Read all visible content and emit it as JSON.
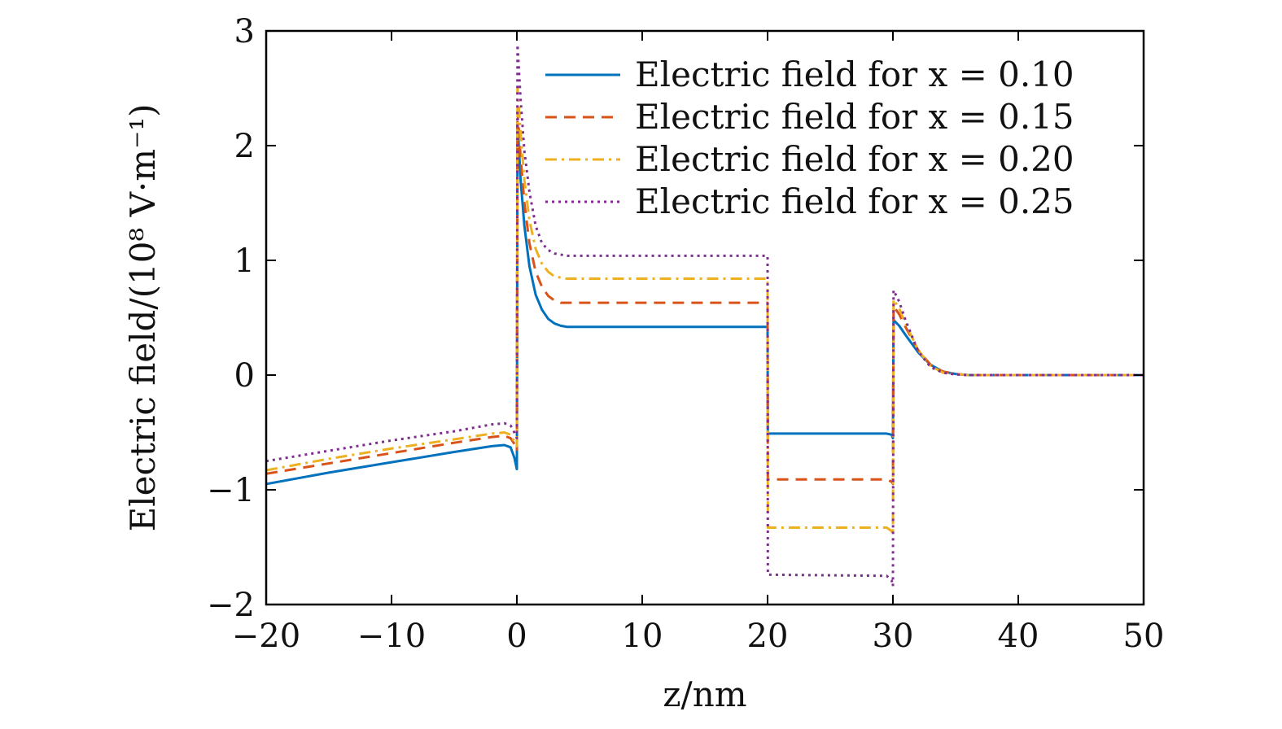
{
  "chart_data": {
    "type": "line",
    "xlabel": "z/nm",
    "ylabel": "Electric field/(10⁸ V·m⁻¹)",
    "xlim": [
      -20,
      50
    ],
    "ylim": [
      -2,
      3
    ],
    "xticks": [
      -20,
      -10,
      0,
      10,
      20,
      30,
      40,
      50
    ],
    "yticks": [
      -2,
      -1,
      0,
      1,
      2,
      3
    ],
    "xtick_labels": [
      "−20",
      "−10",
      "0",
      "10",
      "20",
      "30",
      "40",
      "50"
    ],
    "ytick_labels": [
      "−2",
      "−1",
      "0",
      "1",
      "2",
      "3"
    ],
    "grid": false,
    "legend_position": "top-right",
    "series": [
      {
        "name": "Electric field for x = 0.10",
        "color": "#0072BD",
        "dash": "solid",
        "points": [
          [
            -20,
            -0.95
          ],
          [
            -15,
            -0.85
          ],
          [
            -10,
            -0.76
          ],
          [
            -5,
            -0.67
          ],
          [
            -2,
            -0.62
          ],
          [
            -1,
            -0.61
          ],
          [
            -0.5,
            -0.63
          ],
          [
            -0.2,
            -0.72
          ],
          [
            0,
            -0.82
          ],
          [
            0.05,
            2.2
          ],
          [
            0.3,
            1.7
          ],
          [
            0.6,
            1.3
          ],
          [
            1,
            0.95
          ],
          [
            1.5,
            0.7
          ],
          [
            2,
            0.57
          ],
          [
            2.5,
            0.49
          ],
          [
            3,
            0.45
          ],
          [
            3.5,
            0.43
          ],
          [
            4,
            0.42
          ],
          [
            20,
            0.42
          ],
          [
            20.02,
            -0.51
          ],
          [
            29.5,
            -0.51
          ],
          [
            29.9,
            -0.52
          ],
          [
            30,
            -0.55
          ],
          [
            30.05,
            0.48
          ],
          [
            30.5,
            0.43
          ],
          [
            31,
            0.35
          ],
          [
            32,
            0.2
          ],
          [
            33,
            0.09
          ],
          [
            34,
            0.03
          ],
          [
            35,
            0.01
          ],
          [
            36,
            0
          ],
          [
            50,
            0
          ]
        ]
      },
      {
        "name": "Electric field for x = 0.15",
        "color": "#D95319",
        "dash": "dashed",
        "points": [
          [
            -20,
            -0.86
          ],
          [
            -15,
            -0.77
          ],
          [
            -10,
            -0.68
          ],
          [
            -5,
            -0.59
          ],
          [
            -2,
            -0.54
          ],
          [
            -1,
            -0.53
          ],
          [
            -0.5,
            -0.55
          ],
          [
            -0.2,
            -0.6
          ],
          [
            0,
            -0.66
          ],
          [
            0.05,
            2.3
          ],
          [
            0.3,
            1.9
          ],
          [
            0.6,
            1.5
          ],
          [
            1,
            1.15
          ],
          [
            1.5,
            0.9
          ],
          [
            2,
            0.77
          ],
          [
            2.5,
            0.69
          ],
          [
            3,
            0.65
          ],
          [
            3.5,
            0.63
          ],
          [
            4,
            0.63
          ],
          [
            20,
            0.63
          ],
          [
            20.02,
            -0.91
          ],
          [
            29.5,
            -0.91
          ],
          [
            29.9,
            -0.93
          ],
          [
            30,
            -0.95
          ],
          [
            30.05,
            0.6
          ],
          [
            30.5,
            0.53
          ],
          [
            31,
            0.42
          ],
          [
            32,
            0.22
          ],
          [
            33,
            0.09
          ],
          [
            34,
            0.03
          ],
          [
            35,
            0.01
          ],
          [
            36,
            0
          ],
          [
            50,
            0
          ]
        ]
      },
      {
        "name": "Electric field for x = 0.20",
        "color": "#EDB120",
        "dash": "dashdot",
        "points": [
          [
            -20,
            -0.83
          ],
          [
            -15,
            -0.73
          ],
          [
            -10,
            -0.64
          ],
          [
            -5,
            -0.56
          ],
          [
            -2,
            -0.51
          ],
          [
            -1,
            -0.5
          ],
          [
            -0.5,
            -0.52
          ],
          [
            -0.2,
            -0.58
          ],
          [
            0,
            -0.62
          ],
          [
            0.05,
            2.5
          ],
          [
            0.3,
            2.1
          ],
          [
            0.6,
            1.7
          ],
          [
            1,
            1.35
          ],
          [
            1.5,
            1.1
          ],
          [
            2,
            0.97
          ],
          [
            2.5,
            0.9
          ],
          [
            3,
            0.86
          ],
          [
            3.5,
            0.85
          ],
          [
            4,
            0.84
          ],
          [
            20,
            0.84
          ],
          [
            20.02,
            -1.33
          ],
          [
            29.5,
            -1.33
          ],
          [
            29.9,
            -1.36
          ],
          [
            30,
            -1.39
          ],
          [
            30.05,
            0.66
          ],
          [
            30.5,
            0.58
          ],
          [
            31,
            0.45
          ],
          [
            32,
            0.22
          ],
          [
            33,
            0.08
          ],
          [
            34,
            0.02
          ],
          [
            35,
            0.01
          ],
          [
            36,
            0
          ],
          [
            50,
            0
          ]
        ]
      },
      {
        "name": "Electric field for x = 0.25",
        "color": "#7E2F8E",
        "dash": "dotted",
        "points": [
          [
            -20,
            -0.75
          ],
          [
            -15,
            -0.66
          ],
          [
            -10,
            -0.57
          ],
          [
            -5,
            -0.49
          ],
          [
            -2,
            -0.43
          ],
          [
            -1,
            -0.42
          ],
          [
            -0.5,
            -0.44
          ],
          [
            -0.2,
            -0.5
          ],
          [
            0,
            -0.55
          ],
          [
            0.05,
            2.88
          ],
          [
            0.3,
            2.4
          ],
          [
            0.6,
            1.95
          ],
          [
            1,
            1.6
          ],
          [
            1.5,
            1.3
          ],
          [
            2,
            1.15
          ],
          [
            2.5,
            1.09
          ],
          [
            3,
            1.06
          ],
          [
            3.5,
            1.05
          ],
          [
            4,
            1.04
          ],
          [
            20,
            1.04
          ],
          [
            20.02,
            -1.74
          ],
          [
            29.5,
            -1.75
          ],
          [
            29.9,
            -1.79
          ],
          [
            30,
            -1.84
          ],
          [
            30.05,
            0.74
          ],
          [
            30.5,
            0.64
          ],
          [
            31,
            0.48
          ],
          [
            32,
            0.21
          ],
          [
            33,
            0.07
          ],
          [
            34,
            0.02
          ],
          [
            35,
            0.005
          ],
          [
            36,
            0
          ],
          [
            50,
            0
          ]
        ]
      }
    ]
  }
}
